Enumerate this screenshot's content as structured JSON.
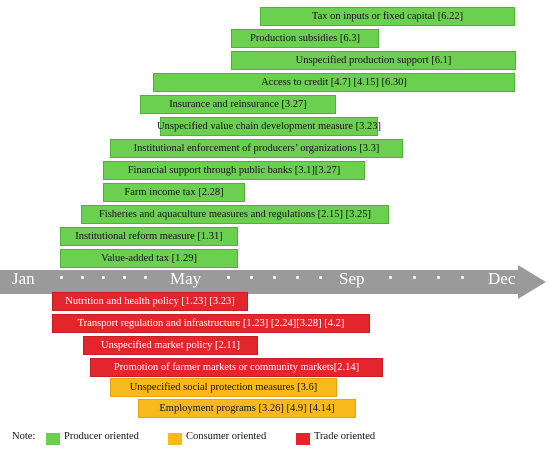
{
  "months": [
    "Jan",
    "May",
    "Sep",
    "Dec"
  ],
  "colors": {
    "producer": "#6bcf4f",
    "consumer": "#f7b91b",
    "trade": "#e3262c",
    "timeline": "#9a9a9a"
  },
  "measures": [
    {
      "label": "Tax on inputs or fixed capital [6.22]",
      "category": "producer"
    },
    {
      "label": "Production subsidies [6.3]",
      "category": "producer"
    },
    {
      "label": "Unspecified production support [6.1]",
      "category": "producer"
    },
    {
      "label": "Access to credit [4.7] [4.15] [6.30]",
      "category": "producer"
    },
    {
      "label": "Insurance and reinsurance [3.27]",
      "category": "producer"
    },
    {
      "label": "Unspecified value chain development measure [3.23]",
      "category": "producer"
    },
    {
      "label": "Institutional enforcement of producers’ organizations [3.3]",
      "category": "producer"
    },
    {
      "label": "Financial support through public banks [3.1][3.27]",
      "category": "producer"
    },
    {
      "label": "Farm income tax [2.28]",
      "category": "producer"
    },
    {
      "label": "Fisheries and aquaculture measures and regulations [2.15] [3.25]",
      "category": "producer"
    },
    {
      "label": "Institutional reform measure [1.31]",
      "category": "producer"
    },
    {
      "label": "Value-added tax [1.29]",
      "category": "producer"
    },
    {
      "label": "Nutrition and health policy [1.23] [3.23]",
      "category": "trade"
    },
    {
      "label": "Transport regulation and infrastructure [1.23] [2.24][3.28] [4.2]",
      "category": "trade"
    },
    {
      "label": "Unspecified market policy [2.11]",
      "category": "trade"
    },
    {
      "label": "Promotion of farmer markets or community markets[2.14]",
      "category": "trade"
    },
    {
      "label": "Unspecified social protection measures [3.6]",
      "category": "consumer"
    },
    {
      "label": "Employment programs [3.26] [4.9] [4.14]",
      "category": "consumer"
    }
  ],
  "legend": {
    "note": "Note:",
    "items": [
      {
        "label": "Producer oriented",
        "category": "producer"
      },
      {
        "label": "Consumer oriented",
        "category": "consumer"
      },
      {
        "label": "Trade oriented",
        "category": "trade"
      }
    ]
  }
}
